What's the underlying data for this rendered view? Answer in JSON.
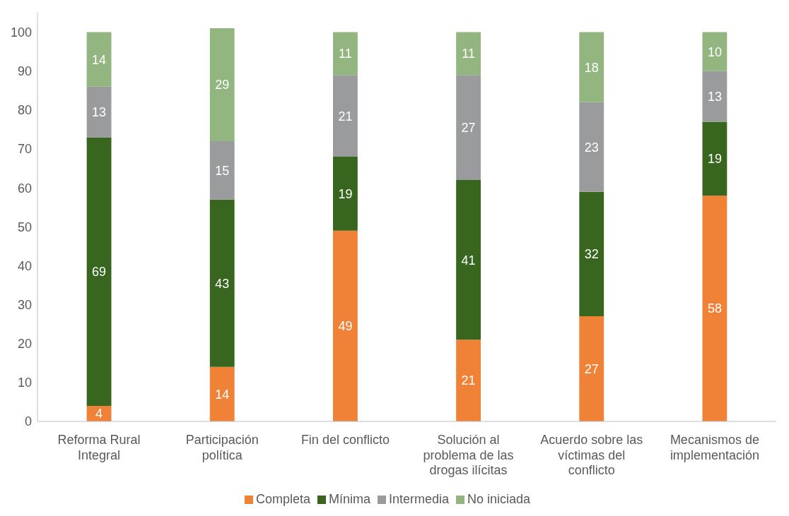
{
  "chart_data": {
    "type": "bar",
    "stacked": true,
    "categories": [
      "Reforma Rural Integral",
      "Participación política",
      "Fin del conflicto",
      "Solución al problema de las drogas ilícitas",
      "Acuerdo sobre las víctimas del conflicto",
      "Mecanismos de implementación"
    ],
    "series": [
      {
        "name": "Completa",
        "color": "#f08238",
        "values": [
          4,
          14,
          49,
          21,
          27,
          58
        ]
      },
      {
        "name": "Mínima",
        "color": "#38661e",
        "values": [
          69,
          43,
          19,
          41,
          32,
          19
        ]
      },
      {
        "name": "Intermedia",
        "color": "#999b9c",
        "values": [
          13,
          15,
          21,
          27,
          23,
          13
        ]
      },
      {
        "name": "No iniciada",
        "color": "#93b57f",
        "values": [
          14,
          29,
          11,
          11,
          18,
          10
        ]
      }
    ],
    "data_labels": true,
    "ylim": [
      0,
      105
    ],
    "yticks": [
      0,
      10,
      20,
      30,
      40,
      50,
      60,
      70,
      80,
      90,
      100
    ],
    "grid": false,
    "legend": "bottom"
  }
}
